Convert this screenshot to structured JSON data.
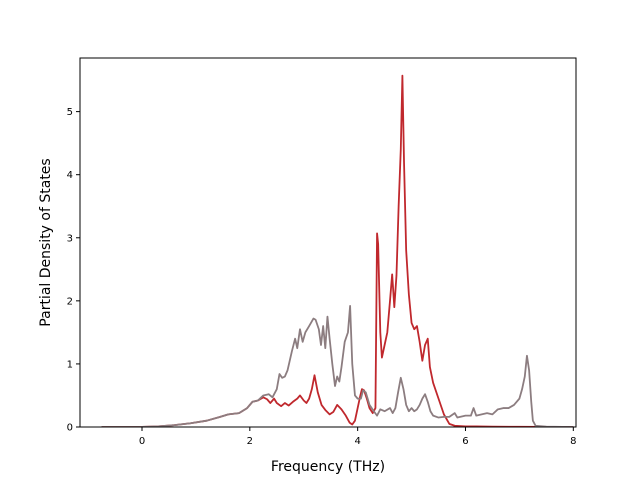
{
  "chart_data": {
    "type": "line",
    "title": "",
    "xlabel": "Frequency (THz)",
    "ylabel": "Partial Density of States",
    "xlim": [
      -1.15,
      8.05
    ],
    "ylim": [
      0,
      5.85
    ],
    "xticks": [
      0,
      2,
      4,
      6,
      8
    ],
    "yticks": [
      0,
      1,
      2,
      3,
      4,
      5
    ],
    "grid": false,
    "legend": "none",
    "series": [
      {
        "color": "#c0282d",
        "points": [
          [
            -0.75,
            0
          ],
          [
            -0.3,
            0
          ],
          [
            0.0,
            0.002
          ],
          [
            0.3,
            0.01
          ],
          [
            0.6,
            0.03
          ],
          [
            0.9,
            0.06
          ],
          [
            1.2,
            0.1
          ],
          [
            1.45,
            0.16
          ],
          [
            1.6,
            0.2
          ],
          [
            1.8,
            0.22
          ],
          [
            1.95,
            0.3
          ],
          [
            2.05,
            0.4
          ],
          [
            2.15,
            0.42
          ],
          [
            2.25,
            0.47
          ],
          [
            2.32,
            0.44
          ],
          [
            2.38,
            0.38
          ],
          [
            2.45,
            0.45
          ],
          [
            2.5,
            0.38
          ],
          [
            2.58,
            0.33
          ],
          [
            2.65,
            0.38
          ],
          [
            2.72,
            0.34
          ],
          [
            2.8,
            0.4
          ],
          [
            2.88,
            0.45
          ],
          [
            2.93,
            0.5
          ],
          [
            3.0,
            0.42
          ],
          [
            3.05,
            0.38
          ],
          [
            3.1,
            0.45
          ],
          [
            3.15,
            0.6
          ],
          [
            3.2,
            0.82
          ],
          [
            3.26,
            0.55
          ],
          [
            3.33,
            0.35
          ],
          [
            3.4,
            0.27
          ],
          [
            3.48,
            0.2
          ],
          [
            3.55,
            0.24
          ],
          [
            3.62,
            0.35
          ],
          [
            3.7,
            0.28
          ],
          [
            3.78,
            0.18
          ],
          [
            3.85,
            0.07
          ],
          [
            3.9,
            0.04
          ],
          [
            3.95,
            0.1
          ],
          [
            4.0,
            0.3
          ],
          [
            4.05,
            0.5
          ],
          [
            4.08,
            0.6
          ],
          [
            4.12,
            0.58
          ],
          [
            4.17,
            0.45
          ],
          [
            4.22,
            0.3
          ],
          [
            4.28,
            0.22
          ],
          [
            4.33,
            0.3
          ],
          [
            4.36,
            3.07
          ],
          [
            4.38,
            2.9
          ],
          [
            4.42,
            1.5
          ],
          [
            4.45,
            1.1
          ],
          [
            4.5,
            1.3
          ],
          [
            4.55,
            1.5
          ],
          [
            4.6,
            2.0
          ],
          [
            4.64,
            2.42
          ],
          [
            4.68,
            1.9
          ],
          [
            4.72,
            2.4
          ],
          [
            4.76,
            3.5
          ],
          [
            4.8,
            4.4
          ],
          [
            4.83,
            5.57
          ],
          [
            4.86,
            4.2
          ],
          [
            4.9,
            2.8
          ],
          [
            4.95,
            2.1
          ],
          [
            5.0,
            1.65
          ],
          [
            5.05,
            1.55
          ],
          [
            5.1,
            1.6
          ],
          [
            5.15,
            1.35
          ],
          [
            5.2,
            1.05
          ],
          [
            5.25,
            1.3
          ],
          [
            5.3,
            1.4
          ],
          [
            5.34,
            0.95
          ],
          [
            5.4,
            0.7
          ],
          [
            5.5,
            0.45
          ],
          [
            5.6,
            0.2
          ],
          [
            5.7,
            0.05
          ],
          [
            5.8,
            0.02
          ],
          [
            6.0,
            0.01
          ],
          [
            6.2,
            0.01
          ],
          [
            6.5,
            0.005
          ],
          [
            7.0,
            0.003
          ],
          [
            7.5,
            0.001
          ],
          [
            8.0,
            0
          ]
        ]
      },
      {
        "color": "#8c7d80",
        "points": [
          [
            -0.75,
            0
          ],
          [
            -0.3,
            0
          ],
          [
            0.0,
            0.002
          ],
          [
            0.3,
            0.01
          ],
          [
            0.6,
            0.03
          ],
          [
            0.9,
            0.06
          ],
          [
            1.2,
            0.1
          ],
          [
            1.45,
            0.16
          ],
          [
            1.6,
            0.2
          ],
          [
            1.8,
            0.22
          ],
          [
            1.95,
            0.3
          ],
          [
            2.05,
            0.4
          ],
          [
            2.15,
            0.42
          ],
          [
            2.25,
            0.5
          ],
          [
            2.35,
            0.52
          ],
          [
            2.42,
            0.47
          ],
          [
            2.5,
            0.6
          ],
          [
            2.55,
            0.84
          ],
          [
            2.6,
            0.78
          ],
          [
            2.65,
            0.8
          ],
          [
            2.7,
            0.9
          ],
          [
            2.78,
            1.2
          ],
          [
            2.84,
            1.4
          ],
          [
            2.88,
            1.25
          ],
          [
            2.93,
            1.55
          ],
          [
            2.98,
            1.35
          ],
          [
            3.03,
            1.5
          ],
          [
            3.1,
            1.6
          ],
          [
            3.18,
            1.72
          ],
          [
            3.22,
            1.7
          ],
          [
            3.28,
            1.55
          ],
          [
            3.32,
            1.3
          ],
          [
            3.36,
            1.6
          ],
          [
            3.4,
            1.25
          ],
          [
            3.44,
            1.75
          ],
          [
            3.48,
            1.4
          ],
          [
            3.53,
            1.0
          ],
          [
            3.58,
            0.65
          ],
          [
            3.62,
            0.8
          ],
          [
            3.66,
            0.72
          ],
          [
            3.7,
            0.95
          ],
          [
            3.76,
            1.35
          ],
          [
            3.82,
            1.5
          ],
          [
            3.86,
            1.92
          ],
          [
            3.9,
            1.0
          ],
          [
            3.95,
            0.5
          ],
          [
            4.0,
            0.45
          ],
          [
            4.06,
            0.45
          ],
          [
            4.1,
            0.58
          ],
          [
            4.15,
            0.55
          ],
          [
            4.22,
            0.35
          ],
          [
            4.3,
            0.25
          ],
          [
            4.36,
            0.18
          ],
          [
            4.42,
            0.28
          ],
          [
            4.5,
            0.25
          ],
          [
            4.6,
            0.3
          ],
          [
            4.65,
            0.22
          ],
          [
            4.7,
            0.3
          ],
          [
            4.75,
            0.55
          ],
          [
            4.8,
            0.78
          ],
          [
            4.85,
            0.6
          ],
          [
            4.9,
            0.35
          ],
          [
            4.95,
            0.25
          ],
          [
            5.0,
            0.3
          ],
          [
            5.05,
            0.25
          ],
          [
            5.1,
            0.28
          ],
          [
            5.15,
            0.35
          ],
          [
            5.2,
            0.45
          ],
          [
            5.25,
            0.52
          ],
          [
            5.3,
            0.4
          ],
          [
            5.35,
            0.25
          ],
          [
            5.4,
            0.18
          ],
          [
            5.5,
            0.15
          ],
          [
            5.6,
            0.16
          ],
          [
            5.7,
            0.16
          ],
          [
            5.8,
            0.22
          ],
          [
            5.85,
            0.15
          ],
          [
            6.0,
            0.18
          ],
          [
            6.1,
            0.18
          ],
          [
            6.15,
            0.3
          ],
          [
            6.2,
            0.18
          ],
          [
            6.3,
            0.2
          ],
          [
            6.4,
            0.22
          ],
          [
            6.5,
            0.2
          ],
          [
            6.6,
            0.28
          ],
          [
            6.7,
            0.3
          ],
          [
            6.8,
            0.3
          ],
          [
            6.9,
            0.35
          ],
          [
            7.0,
            0.45
          ],
          [
            7.05,
            0.6
          ],
          [
            7.1,
            0.8
          ],
          [
            7.14,
            1.13
          ],
          [
            7.18,
            0.9
          ],
          [
            7.22,
            0.4
          ],
          [
            7.25,
            0.1
          ],
          [
            7.3,
            0.02
          ],
          [
            7.5,
            0.005
          ],
          [
            7.8,
            0.001
          ],
          [
            8.0,
            0
          ]
        ]
      }
    ]
  }
}
